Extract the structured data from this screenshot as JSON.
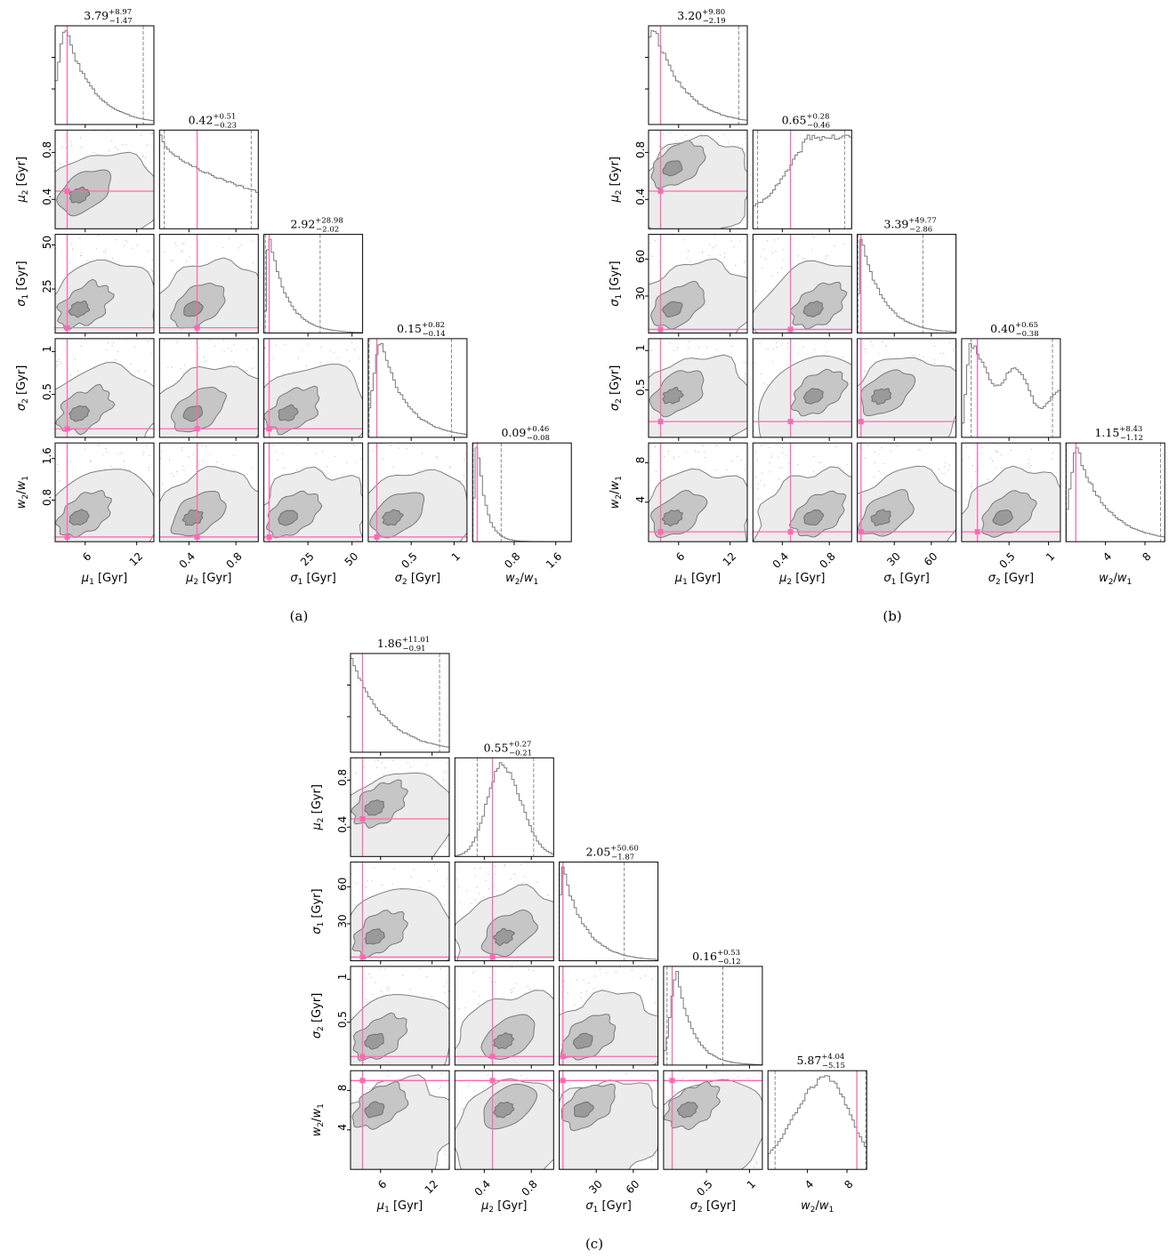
{
  "figure": {
    "panels": [
      {
        "caption": "(a)",
        "params": [
          {
            "label": "μ1 [Gyr]",
            "range": [
              2.5,
              14.0
            ],
            "ticks": [
              6,
              12
            ],
            "median": 3.79,
            "low": 2.32,
            "high": 12.76,
            "truth": 3.9,
            "title": {
              "value": "3.79",
              "plus": "+8.97",
              "minus": "−1.47"
            }
          },
          {
            "label": "μ2 [Gyr]",
            "range": [
              0.15,
              0.99
            ],
            "ticks": [
              0.4,
              0.8
            ],
            "median": 0.42,
            "low": 0.19,
            "high": 0.93,
            "truth": 0.47,
            "title": {
              "value": "0.42",
              "plus": "+0.51",
              "minus": "−0.23"
            }
          },
          {
            "label": "σ1 [Gyr]",
            "range": [
              0.0,
              56.0
            ],
            "ticks": [
              25,
              50
            ],
            "median": 2.92,
            "low": 0.9,
            "high": 31.9,
            "truth": 3.0,
            "title": {
              "value": "2.92",
              "plus": "+28.98",
              "minus": "−2.02"
            }
          },
          {
            "label": "σ2 [Gyr]",
            "range": [
              0.0,
              1.15
            ],
            "ticks": [
              0.5,
              1.0
            ],
            "median": 0.15,
            "low": 0.01,
            "high": 0.97,
            "truth": 0.1,
            "title": {
              "value": "0.15",
              "plus": "+0.82",
              "minus": "−0.14"
            }
          },
          {
            "label": "w2/w1",
            "range": [
              0.0,
              1.9
            ],
            "ticks": [
              0.8,
              1.6
            ],
            "median": 0.09,
            "low": 0.01,
            "high": 0.55,
            "truth": 0.09,
            "title": {
              "value": "0.09",
              "plus": "+0.46",
              "minus": "−0.08"
            }
          }
        ]
      },
      {
        "caption": "(b)",
        "params": [
          {
            "label": "μ1 [Gyr]",
            "range": [
              2.5,
              14.0
            ],
            "ticks": [
              6,
              12
            ],
            "median": 3.2,
            "low": 1.01,
            "high": 13.0,
            "truth": 3.9,
            "title": {
              "value": "3.20",
              "plus": "+9.80",
              "minus": "−2.19"
            }
          },
          {
            "label": "μ2 [Gyr]",
            "range": [
              0.15,
              0.99
            ],
            "ticks": [
              0.4,
              0.8
            ],
            "median": 0.65,
            "low": 0.19,
            "high": 0.93,
            "truth": 0.47,
            "title": {
              "value": "0.65",
              "plus": "+0.28",
              "minus": "−0.46"
            }
          },
          {
            "label": "σ1 [Gyr]",
            "range": [
              0.0,
              80.0
            ],
            "ticks": [
              30,
              60
            ],
            "median": 3.39,
            "low": 0.53,
            "high": 53.16,
            "truth": 3.0,
            "title": {
              "value": "3.39",
              "plus": "+49.77",
              "minus": "−2.86"
            }
          },
          {
            "label": "σ2 [Gyr]",
            "range": [
              -0.1,
              1.15
            ],
            "ticks": [
              0.5,
              1.0
            ],
            "median": 0.4,
            "low": 0.02,
            "high": 1.05,
            "truth": 0.1,
            "title": {
              "value": "0.40",
              "plus": "+0.65",
              "minus": "−0.38"
            }
          },
          {
            "label": "w2/w1",
            "range": [
              0.0,
              10.0
            ],
            "ticks": [
              4,
              8
            ],
            "median": 1.15,
            "low": 0.03,
            "high": 9.58,
            "truth": 1.0,
            "title": {
              "value": "1.15",
              "plus": "+8.43",
              "minus": "−1.12"
            }
          }
        ]
      },
      {
        "caption": "(c)",
        "params": [
          {
            "label": "μ1 [Gyr]",
            "range": [
              2.5,
              14.0
            ],
            "ticks": [
              6,
              12
            ],
            "median": 1.86,
            "low": 0.95,
            "high": 12.87,
            "truth": 3.9,
            "title": {
              "value": "1.86",
              "plus": "+11.01",
              "minus": "−0.91"
            }
          },
          {
            "label": "μ2 [Gyr]",
            "range": [
              0.15,
              0.99
            ],
            "ticks": [
              0.4,
              0.8
            ],
            "median": 0.55,
            "low": 0.34,
            "high": 0.82,
            "truth": 0.47,
            "title": {
              "value": "0.55",
              "plus": "+0.27",
              "minus": "−0.21"
            }
          },
          {
            "label": "σ1 [Gyr]",
            "range": [
              0.0,
              80.0
            ],
            "ticks": [
              30,
              60
            ],
            "median": 2.05,
            "low": 0.18,
            "high": 52.65,
            "truth": 3.0,
            "title": {
              "value": "2.05",
              "plus": "+50.60",
              "minus": "−1.87"
            }
          },
          {
            "label": "σ2 [Gyr]",
            "range": [
              0.0,
              1.15
            ],
            "ticks": [
              0.5,
              1.0
            ],
            "median": 0.16,
            "low": 0.04,
            "high": 0.69,
            "truth": 0.1,
            "title": {
              "value": "0.16",
              "plus": "+0.53",
              "minus": "−0.12"
            }
          },
          {
            "label": "w2/w1",
            "range": [
              0.0,
              10.0
            ],
            "ticks": [
              4,
              8
            ],
            "median": 5.87,
            "low": 0.72,
            "high": 9.91,
            "truth": 9.0,
            "title": {
              "value": "5.87",
              "plus": "+4.04",
              "minus": "−5.15"
            }
          }
        ]
      }
    ]
  },
  "chart_data": [
    {
      "type": "corner",
      "caption": "(a)",
      "parameters": [
        "μ1 [Gyr]",
        "μ2 [Gyr]",
        "σ1 [Gyr]",
        "σ2 [Gyr]",
        "w2/w1"
      ],
      "summary_titles": [
        "3.79 +8.97 −1.47",
        "0.42 +0.51 −0.23",
        "2.92 +28.98 −2.02",
        "0.15 +0.82 −0.14",
        "0.09 +0.46 −0.08"
      ],
      "medians": [
        3.79,
        0.42,
        2.92,
        0.15,
        0.09
      ],
      "truth_values": [
        3.9,
        0.47,
        3.0,
        0.1,
        0.09
      ],
      "axis_ranges": [
        [
          2.5,
          14.0
        ],
        [
          0.15,
          0.99
        ],
        [
          0.0,
          56.0
        ],
        [
          0.0,
          1.15
        ],
        [
          0.0,
          1.9
        ]
      ],
      "marker_color": "#ff69b4",
      "contour_colors": [
        "#ececec",
        "#c6c6c6",
        "#9a9a9a"
      ]
    },
    {
      "type": "corner",
      "caption": "(b)",
      "parameters": [
        "μ1 [Gyr]",
        "μ2 [Gyr]",
        "σ1 [Gyr]",
        "σ2 [Gyr]",
        "w2/w1"
      ],
      "summary_titles": [
        "3.20 +9.80 −2.19",
        "0.65 +0.28 −0.46",
        "3.39 +49.77 −2.86",
        "0.40 +0.65 −0.38",
        "1.15 +8.43 −1.12"
      ],
      "medians": [
        3.2,
        0.65,
        3.39,
        0.4,
        1.15
      ],
      "truth_values": [
        3.9,
        0.47,
        3.0,
        0.1,
        1.0
      ],
      "axis_ranges": [
        [
          2.5,
          14.0
        ],
        [
          0.15,
          0.99
        ],
        [
          0.0,
          80.0
        ],
        [
          -0.1,
          1.15
        ],
        [
          0.0,
          10.0
        ]
      ],
      "marker_color": "#ff69b4",
      "contour_colors": [
        "#ececec",
        "#c6c6c6",
        "#9a9a9a"
      ]
    },
    {
      "type": "corner",
      "caption": "(c)",
      "parameters": [
        "μ1 [Gyr]",
        "μ2 [Gyr]",
        "σ1 [Gyr]",
        "σ2 [Gyr]",
        "w2/w1"
      ],
      "summary_titles": [
        "1.86 +11.01 −0.91",
        "0.55 +0.27 −0.21",
        "2.05 +50.60 −1.87",
        "0.16 +0.53 −0.12",
        "5.87 +4.04 −5.15"
      ],
      "medians": [
        1.86,
        0.55,
        2.05,
        0.16,
        5.87
      ],
      "truth_values": [
        3.9,
        0.47,
        3.0,
        0.1,
        9.0
      ],
      "axis_ranges": [
        [
          2.5,
          14.0
        ],
        [
          0.15,
          0.99
        ],
        [
          0.0,
          80.0
        ],
        [
          0.0,
          1.15
        ],
        [
          0.0,
          10.0
        ]
      ],
      "marker_color": "#ff69b4",
      "contour_colors": [
        "#ececec",
        "#c6c6c6",
        "#9a9a9a"
      ]
    }
  ]
}
